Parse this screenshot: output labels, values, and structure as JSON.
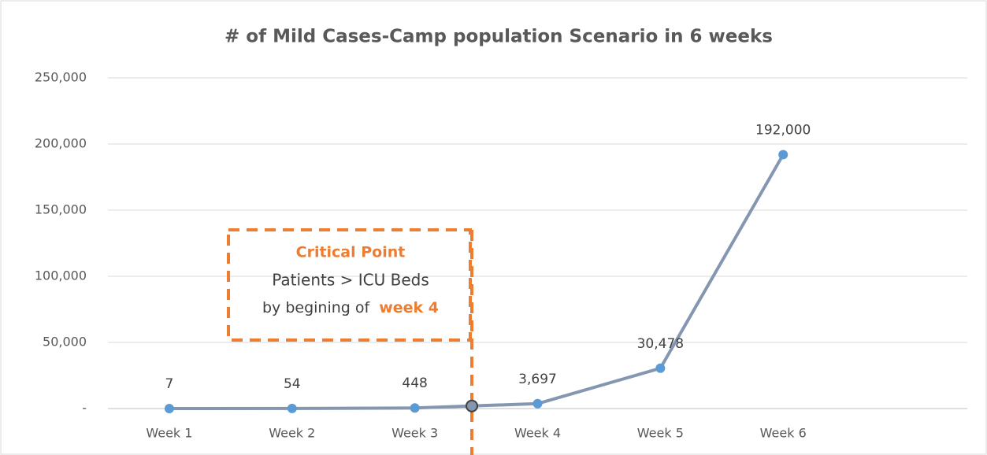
{
  "chart_data": {
    "type": "line",
    "title": "# of Mild Cases-Camp population Scenario in 6 weeks",
    "categories": [
      "Week 1",
      "Week 2",
      "Week 3",
      "Week 4",
      "Week 5",
      "Week 6",
      null
    ],
    "series": [
      {
        "name": "Mild Cases",
        "color": "#8496b0",
        "marker_color": "#5b9bd5",
        "values": [
          7,
          54,
          448,
          3697,
          30478,
          192000,
          null
        ],
        "value_labels": [
          "7",
          "54",
          "448",
          "3,697",
          "30,478",
          "192,000",
          null
        ]
      }
    ],
    "ylim": [
      0,
      250000
    ],
    "yticks": [
      {
        "value": 0,
        "label": "-"
      },
      {
        "value": 50000,
        "label": "50,000"
      },
      {
        "value": 100000,
        "label": "100,000"
      },
      {
        "value": 150000,
        "label": "150,000"
      },
      {
        "value": 200000,
        "label": "200,000"
      },
      {
        "value": 250000,
        "label": "250,000"
      }
    ],
    "grid": true,
    "annotation": {
      "title": "Critical Point",
      "line1": "Patients > ICU Beds",
      "line2": "by begining of",
      "highlight": "week 4"
    }
  }
}
